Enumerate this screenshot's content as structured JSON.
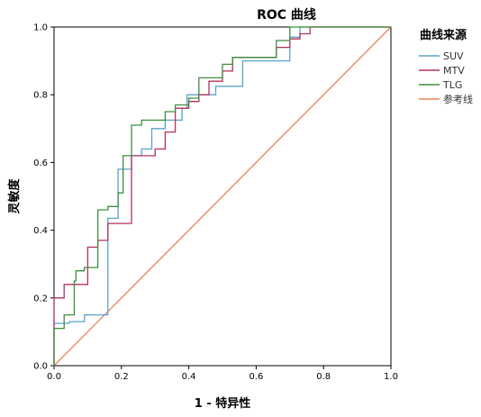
{
  "chart_data": {
    "type": "line",
    "title": "ROC 曲线",
    "xlabel": "1 - 特异性",
    "ylabel": "灵敏度",
    "xlim": [
      0,
      1
    ],
    "ylim": [
      0,
      1
    ],
    "xticks": [
      "0.0",
      "0.2",
      "0.4",
      "0.6",
      "0.8",
      "1.0"
    ],
    "yticks": [
      "0.0",
      "0.2",
      "0.4",
      "0.6",
      "0.8",
      "1.0"
    ],
    "grid": false,
    "legend": {
      "title": "曲线来源",
      "position": "right"
    },
    "series": [
      {
        "name": "SUV",
        "color": "#5ba3c9",
        "points": [
          [
            0,
            0
          ],
          [
            0,
            0.125
          ],
          [
            0.045,
            0.125
          ],
          [
            0.045,
            0.13
          ],
          [
            0.09,
            0.13
          ],
          [
            0.09,
            0.15
          ],
          [
            0.16,
            0.15
          ],
          [
            0.16,
            0.435
          ],
          [
            0.19,
            0.435
          ],
          [
            0.19,
            0.58
          ],
          [
            0.23,
            0.58
          ],
          [
            0.23,
            0.62
          ],
          [
            0.26,
            0.62
          ],
          [
            0.26,
            0.64
          ],
          [
            0.29,
            0.64
          ],
          [
            0.29,
            0.7
          ],
          [
            0.33,
            0.7
          ],
          [
            0.33,
            0.725
          ],
          [
            0.38,
            0.725
          ],
          [
            0.38,
            0.76
          ],
          [
            0.395,
            0.76
          ],
          [
            0.395,
            0.8
          ],
          [
            0.48,
            0.8
          ],
          [
            0.48,
            0.825
          ],
          [
            0.56,
            0.825
          ],
          [
            0.56,
            0.9
          ],
          [
            0.7,
            0.9
          ],
          [
            0.7,
            0.97
          ],
          [
            0.73,
            0.97
          ],
          [
            0.73,
            1
          ],
          [
            1,
            1
          ]
        ]
      },
      {
        "name": "MTV",
        "color": "#b5305c",
        "points": [
          [
            0,
            0
          ],
          [
            0,
            0.2
          ],
          [
            0.03,
            0.2
          ],
          [
            0.03,
            0.24
          ],
          [
            0.1,
            0.24
          ],
          [
            0.1,
            0.35
          ],
          [
            0.13,
            0.35
          ],
          [
            0.13,
            0.37
          ],
          [
            0.16,
            0.37
          ],
          [
            0.16,
            0.42
          ],
          [
            0.23,
            0.42
          ],
          [
            0.23,
            0.62
          ],
          [
            0.3,
            0.62
          ],
          [
            0.3,
            0.64
          ],
          [
            0.33,
            0.64
          ],
          [
            0.33,
            0.69
          ],
          [
            0.36,
            0.69
          ],
          [
            0.36,
            0.76
          ],
          [
            0.4,
            0.76
          ],
          [
            0.4,
            0.78
          ],
          [
            0.43,
            0.78
          ],
          [
            0.43,
            0.8
          ],
          [
            0.46,
            0.8
          ],
          [
            0.46,
            0.84
          ],
          [
            0.5,
            0.84
          ],
          [
            0.5,
            0.87
          ],
          [
            0.53,
            0.87
          ],
          [
            0.53,
            0.91
          ],
          [
            0.66,
            0.91
          ],
          [
            0.66,
            0.94
          ],
          [
            0.7,
            0.94
          ],
          [
            0.7,
            0.965
          ],
          [
            0.73,
            0.965
          ],
          [
            0.73,
            0.98
          ],
          [
            0.76,
            0.98
          ],
          [
            0.76,
            1
          ],
          [
            1,
            1
          ]
        ]
      },
      {
        "name": "TLG",
        "color": "#3e8e3e",
        "points": [
          [
            0,
            0
          ],
          [
            0,
            0.11
          ],
          [
            0.03,
            0.11
          ],
          [
            0.03,
            0.15
          ],
          [
            0.06,
            0.15
          ],
          [
            0.06,
            0.25
          ],
          [
            0.065,
            0.25
          ],
          [
            0.065,
            0.28
          ],
          [
            0.09,
            0.28
          ],
          [
            0.09,
            0.29
          ],
          [
            0.13,
            0.29
          ],
          [
            0.13,
            0.46
          ],
          [
            0.16,
            0.46
          ],
          [
            0.16,
            0.47
          ],
          [
            0.19,
            0.47
          ],
          [
            0.19,
            0.51
          ],
          [
            0.205,
            0.51
          ],
          [
            0.205,
            0.62
          ],
          [
            0.23,
            0.62
          ],
          [
            0.23,
            0.71
          ],
          [
            0.26,
            0.71
          ],
          [
            0.26,
            0.725
          ],
          [
            0.33,
            0.725
          ],
          [
            0.33,
            0.75
          ],
          [
            0.36,
            0.75
          ],
          [
            0.36,
            0.77
          ],
          [
            0.4,
            0.77
          ],
          [
            0.4,
            0.79
          ],
          [
            0.43,
            0.79
          ],
          [
            0.43,
            0.85
          ],
          [
            0.5,
            0.85
          ],
          [
            0.5,
            0.89
          ],
          [
            0.53,
            0.89
          ],
          [
            0.53,
            0.91
          ],
          [
            0.66,
            0.91
          ],
          [
            0.66,
            0.96
          ],
          [
            0.7,
            0.96
          ],
          [
            0.7,
            1
          ],
          [
            1,
            1
          ]
        ]
      },
      {
        "name": "参考线",
        "color": "#e8825a",
        "points": [
          [
            0,
            0
          ],
          [
            1,
            1
          ]
        ]
      }
    ]
  }
}
